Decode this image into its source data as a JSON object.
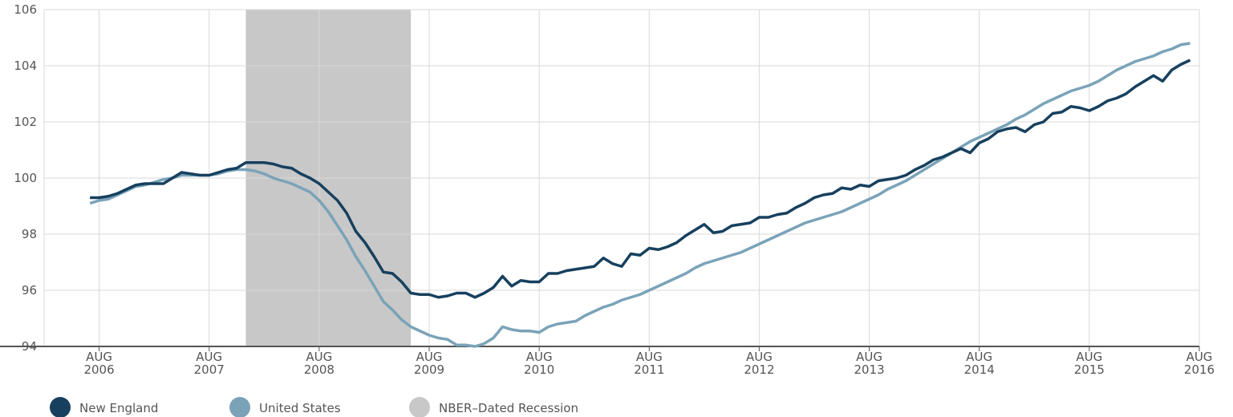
{
  "chart_data": {
    "type": "line",
    "x": [
      "2006-07",
      "2006-08",
      "2006-09",
      "2006-10",
      "2006-11",
      "2006-12",
      "2007-01",
      "2007-02",
      "2007-03",
      "2007-04",
      "2007-05",
      "2007-06",
      "2007-07",
      "2007-08",
      "2007-09",
      "2007-10",
      "2007-11",
      "2007-12",
      "2008-01",
      "2008-02",
      "2008-03",
      "2008-04",
      "2008-05",
      "2008-06",
      "2008-07",
      "2008-08",
      "2008-09",
      "2008-10",
      "2008-11",
      "2008-12",
      "2009-01",
      "2009-02",
      "2009-03",
      "2009-04",
      "2009-05",
      "2009-06",
      "2009-07",
      "2009-08",
      "2009-09",
      "2009-10",
      "2009-11",
      "2009-12",
      "2010-01",
      "2010-02",
      "2010-03",
      "2010-04",
      "2010-05",
      "2010-06",
      "2010-07",
      "2010-08",
      "2010-09",
      "2010-10",
      "2010-11",
      "2010-12",
      "2011-01",
      "2011-02",
      "2011-03",
      "2011-04",
      "2011-05",
      "2011-06",
      "2011-07",
      "2011-08",
      "2011-09",
      "2011-10",
      "2011-11",
      "2011-12",
      "2012-01",
      "2012-02",
      "2012-03",
      "2012-04",
      "2012-05",
      "2012-06",
      "2012-07",
      "2012-08",
      "2012-09",
      "2012-10",
      "2012-11",
      "2012-12",
      "2013-01",
      "2013-02",
      "2013-03",
      "2013-04",
      "2013-05",
      "2013-06",
      "2013-07",
      "2013-08",
      "2013-09",
      "2013-10",
      "2013-11",
      "2013-12",
      "2014-01",
      "2014-02",
      "2014-03",
      "2014-04",
      "2014-05",
      "2014-06",
      "2014-07",
      "2014-08",
      "2014-09",
      "2014-10",
      "2014-11",
      "2014-12",
      "2015-01",
      "2015-02",
      "2015-03",
      "2015-04",
      "2015-05",
      "2015-06",
      "2015-07",
      "2015-08",
      "2015-09",
      "2015-10",
      "2015-11",
      "2015-12",
      "2016-01",
      "2016-02",
      "2016-03",
      "2016-04",
      "2016-05",
      "2016-06",
      "2016-07"
    ],
    "series": [
      {
        "name": "New England",
        "color": "#17405e",
        "values": [
          99.3,
          99.3,
          99.35,
          99.45,
          99.6,
          99.75,
          99.8,
          99.8,
          99.8,
          100.0,
          100.2,
          100.15,
          100.1,
          100.1,
          100.2,
          100.3,
          100.35,
          100.55,
          100.55,
          100.55,
          100.5,
          100.4,
          100.35,
          100.15,
          100.0,
          99.8,
          99.5,
          99.2,
          98.75,
          98.1,
          97.7,
          97.2,
          96.65,
          96.6,
          96.3,
          95.9,
          95.85,
          95.85,
          95.75,
          95.8,
          95.9,
          95.9,
          95.75,
          95.9,
          96.1,
          96.5,
          96.15,
          96.35,
          96.3,
          96.3,
          96.6,
          96.6,
          96.7,
          96.75,
          96.8,
          96.85,
          97.15,
          96.95,
          96.85,
          97.3,
          97.25,
          97.5,
          97.45,
          97.55,
          97.7,
          97.95,
          98.15,
          98.35,
          98.05,
          98.1,
          98.3,
          98.35,
          98.4,
          98.6,
          98.6,
          98.7,
          98.75,
          98.95,
          99.1,
          99.3,
          99.4,
          99.45,
          99.65,
          99.6,
          99.75,
          99.7,
          99.9,
          99.95,
          100.0,
          100.1,
          100.3,
          100.45,
          100.65,
          100.75,
          100.9,
          101.05,
          100.9,
          101.25,
          101.4,
          101.65,
          101.75,
          101.8,
          101.65,
          101.9,
          102.0,
          102.3,
          102.35,
          102.55,
          102.5,
          102.4,
          102.55,
          102.75,
          102.85,
          103.0,
          103.25,
          103.45,
          103.65,
          103.45,
          103.85,
          104.05,
          104.2
        ]
      },
      {
        "name": "United States",
        "color": "#7aa3b8",
        "values": [
          99.1,
          99.2,
          99.25,
          99.4,
          99.55,
          99.7,
          99.75,
          99.85,
          99.95,
          100.0,
          100.1,
          100.1,
          100.1,
          100.1,
          100.15,
          100.25,
          100.3,
          100.3,
          100.25,
          100.15,
          100.0,
          99.9,
          99.8,
          99.65,
          99.5,
          99.2,
          98.8,
          98.3,
          97.8,
          97.2,
          96.7,
          96.15,
          95.6,
          95.3,
          94.95,
          94.7,
          94.55,
          94.4,
          94.3,
          94.25,
          94.05,
          94.05,
          94.0,
          94.1,
          94.3,
          94.7,
          94.6,
          94.55,
          94.55,
          94.5,
          94.7,
          94.8,
          94.85,
          94.9,
          95.1,
          95.25,
          95.4,
          95.5,
          95.65,
          95.75,
          95.85,
          96.0,
          96.15,
          96.3,
          96.45,
          96.6,
          96.8,
          96.95,
          97.05,
          97.15,
          97.25,
          97.35,
          97.5,
          97.65,
          97.8,
          97.95,
          98.1,
          98.25,
          98.4,
          98.5,
          98.6,
          98.7,
          98.8,
          98.95,
          99.1,
          99.25,
          99.4,
          99.6,
          99.75,
          99.9,
          100.1,
          100.3,
          100.5,
          100.7,
          100.9,
          101.1,
          101.3,
          101.45,
          101.6,
          101.75,
          101.9,
          102.1,
          102.25,
          102.45,
          102.65,
          102.8,
          102.95,
          103.1,
          103.2,
          103.3,
          103.45,
          103.65,
          103.85,
          104.0,
          104.15,
          104.25,
          104.35,
          104.5,
          104.6,
          104.75,
          104.8
        ]
      }
    ],
    "recession": {
      "name": "NBER–Dated Recession",
      "start": "2007-12",
      "end": "2009-06",
      "color": "#c8c8c8"
    },
    "xlim": [
      "2006-02",
      "2016-08"
    ],
    "xticks": [
      {
        "value": "2006-08",
        "label": "AUG 2006"
      },
      {
        "value": "2007-08",
        "label": "AUG 2007"
      },
      {
        "value": "2008-08",
        "label": "AUG 2008"
      },
      {
        "value": "2009-08",
        "label": "AUG 2009"
      },
      {
        "value": "2010-08",
        "label": "AUG 2010"
      },
      {
        "value": "2011-08",
        "label": "AUG 2011"
      },
      {
        "value": "2012-08",
        "label": "AUG 2012"
      },
      {
        "value": "2013-08",
        "label": "AUG 2013"
      },
      {
        "value": "2014-08",
        "label": "AUG 2014"
      },
      {
        "value": "2015-08",
        "label": "AUG 2015"
      },
      {
        "value": "2016-08",
        "label": "AUG 2016"
      }
    ],
    "ylim": [
      94,
      106
    ],
    "yticks": [
      94,
      96,
      98,
      100,
      102,
      104,
      106
    ],
    "grid": true,
    "legend": "bottom"
  }
}
